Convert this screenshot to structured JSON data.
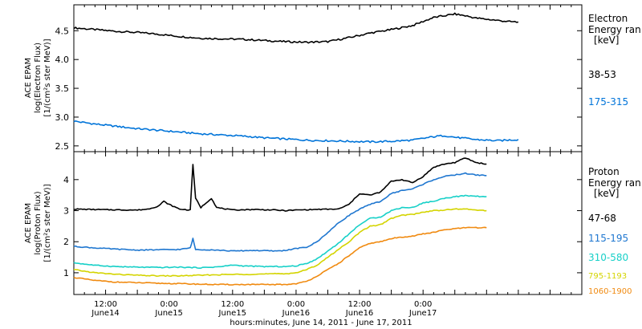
{
  "chart_data": [
    {
      "type": "line",
      "panel": "electron",
      "ylabel": [
        "ACE EPAM",
        "log(Electron Flux)",
        "[1/(cm²s ster MeV)]"
      ],
      "ylim": [
        2.4,
        4.95
      ],
      "xlim": [
        0,
        96
      ],
      "yticks": [
        {
          "value": 2.5,
          "label": "2.5"
        },
        {
          "value": 3.0,
          "label": "3.0"
        },
        {
          "value": 3.5,
          "label": "3.5"
        },
        {
          "value": 4.0,
          "label": "4.0"
        },
        {
          "value": 4.5,
          "label": "4.5"
        }
      ],
      "legend_title": [
        "Electron",
        "Energy ran",
        "[keV]"
      ],
      "series": [
        {
          "name": "38-53",
          "color": "#000000",
          "points": [
            [
              0,
              4.55
            ],
            [
              4,
              4.52
            ],
            [
              8,
              4.49
            ],
            [
              12,
              4.47
            ],
            [
              16,
              4.44
            ],
            [
              20,
              4.4
            ],
            [
              24,
              4.37
            ],
            [
              28,
              4.36
            ],
            [
              32,
              4.35
            ],
            [
              36,
              4.33
            ],
            [
              40,
              4.31
            ],
            [
              44,
              4.3
            ],
            [
              48,
              4.31
            ],
            [
              52,
              4.38
            ],
            [
              56,
              4.46
            ],
            [
              60,
              4.52
            ],
            [
              64,
              4.59
            ],
            [
              68,
              4.73
            ],
            [
              72,
              4.79
            ],
            [
              74,
              4.76
            ],
            [
              76,
              4.72
            ],
            [
              80,
              4.68
            ],
            [
              82,
              4.66
            ],
            [
              84,
              4.65
            ]
          ]
        },
        {
          "name": "175-315",
          "color": "#0074d9",
          "points": [
            [
              0,
              2.93
            ],
            [
              4,
              2.88
            ],
            [
              8,
              2.84
            ],
            [
              12,
              2.8
            ],
            [
              16,
              2.77
            ],
            [
              20,
              2.74
            ],
            [
              24,
              2.71
            ],
            [
              28,
              2.69
            ],
            [
              32,
              2.67
            ],
            [
              36,
              2.64
            ],
            [
              40,
              2.62
            ],
            [
              44,
              2.6
            ],
            [
              48,
              2.59
            ],
            [
              52,
              2.58
            ],
            [
              56,
              2.57
            ],
            [
              60,
              2.58
            ],
            [
              64,
              2.6
            ],
            [
              68,
              2.66
            ],
            [
              70,
              2.68
            ],
            [
              72,
              2.65
            ],
            [
              76,
              2.61
            ],
            [
              80,
              2.59
            ],
            [
              84,
              2.61
            ]
          ]
        }
      ]
    },
    {
      "type": "line",
      "panel": "proton",
      "ylabel": [
        "ACE EPAM",
        "log(Proton Flux)",
        "[1/(cm²s ster MeV)]"
      ],
      "ylim": [
        0.3,
        4.9
      ],
      "xlim": [
        0,
        96
      ],
      "xlabel": "hours:minutes, June 14, 2011 - June 17, 2011",
      "yticks": [
        {
          "value": 1,
          "label": "1"
        },
        {
          "value": 2,
          "label": "2"
        },
        {
          "value": 3,
          "label": "3"
        },
        {
          "value": 4,
          "label": "4"
        }
      ],
      "xticks": [
        {
          "value": 6,
          "label": "12:00",
          "sub": "June14"
        },
        {
          "value": 18,
          "label": "0:00",
          "sub": "June15"
        },
        {
          "value": 30,
          "label": "12:00",
          "sub": "June15"
        },
        {
          "value": 42,
          "label": "0:00",
          "sub": "June16"
        },
        {
          "value": 54,
          "label": "12:00",
          "sub": "June16"
        },
        {
          "value": 66,
          "label": "0:00",
          "sub": "June17"
        }
      ],
      "legend_title": [
        "Proton",
        "Energy ran",
        "[keV]"
      ],
      "series": [
        {
          "name": "47-68",
          "color": "#000000",
          "points": [
            [
              0,
              3.05
            ],
            [
              6,
              3.03
            ],
            [
              12,
              3.02
            ],
            [
              14,
              3.05
            ],
            [
              16,
              3.15
            ],
            [
              17,
              3.3
            ],
            [
              18,
              3.2
            ],
            [
              20,
              3.05
            ],
            [
              22,
              3.02
            ],
            [
              22.5,
              4.5
            ],
            [
              23,
              3.4
            ],
            [
              24,
              3.1
            ],
            [
              26,
              3.4
            ],
            [
              27,
              3.1
            ],
            [
              30,
              3.02
            ],
            [
              34,
              3.04
            ],
            [
              38,
              3.02
            ],
            [
              40,
              3.0
            ],
            [
              42,
              3.02
            ],
            [
              46,
              3.04
            ],
            [
              50,
              3.05
            ],
            [
              52,
              3.2
            ],
            [
              54,
              3.55
            ],
            [
              56,
              3.5
            ],
            [
              58,
              3.6
            ],
            [
              60,
              3.95
            ],
            [
              62,
              4.0
            ],
            [
              64,
              3.9
            ],
            [
              66,
              4.1
            ],
            [
              68,
              4.4
            ],
            [
              70,
              4.5
            ],
            [
              72,
              4.55
            ],
            [
              74,
              4.7
            ],
            [
              76,
              4.55
            ],
            [
              78,
              4.5
            ]
          ]
        },
        {
          "name": "115-195",
          "color": "#1f77d0",
          "points": [
            [
              0,
              1.85
            ],
            [
              4,
              1.8
            ],
            [
              8,
              1.76
            ],
            [
              12,
              1.73
            ],
            [
              16,
              1.74
            ],
            [
              20,
              1.75
            ],
            [
              22,
              1.8
            ],
            [
              22.5,
              2.1
            ],
            [
              23,
              1.75
            ],
            [
              26,
              1.74
            ],
            [
              30,
              1.7
            ],
            [
              34,
              1.72
            ],
            [
              38,
              1.7
            ],
            [
              40,
              1.72
            ],
            [
              42,
              1.78
            ],
            [
              44,
              1.82
            ],
            [
              46,
              2.0
            ],
            [
              48,
              2.3
            ],
            [
              50,
              2.6
            ],
            [
              52,
              2.85
            ],
            [
              54,
              3.05
            ],
            [
              56,
              3.2
            ],
            [
              58,
              3.3
            ],
            [
              60,
              3.55
            ],
            [
              62,
              3.65
            ],
            [
              64,
              3.7
            ],
            [
              66,
              3.85
            ],
            [
              68,
              4.0
            ],
            [
              70,
              4.1
            ],
            [
              72,
              4.15
            ],
            [
              74,
              4.2
            ],
            [
              76,
              4.15
            ],
            [
              78,
              4.13
            ]
          ]
        },
        {
          "name": "310-580",
          "color": "#17d0c8",
          "points": [
            [
              0,
              1.32
            ],
            [
              4,
              1.24
            ],
            [
              8,
              1.2
            ],
            [
              12,
              1.18
            ],
            [
              16,
              1.17
            ],
            [
              20,
              1.18
            ],
            [
              24,
              1.16
            ],
            [
              28,
              1.2
            ],
            [
              30,
              1.25
            ],
            [
              32,
              1.22
            ],
            [
              36,
              1.2
            ],
            [
              40,
              1.2
            ],
            [
              42,
              1.22
            ],
            [
              44,
              1.3
            ],
            [
              46,
              1.45
            ],
            [
              48,
              1.7
            ],
            [
              50,
              1.95
            ],
            [
              52,
              2.25
            ],
            [
              54,
              2.55
            ],
            [
              56,
              2.75
            ],
            [
              58,
              2.8
            ],
            [
              60,
              3.0
            ],
            [
              62,
              3.1
            ],
            [
              64,
              3.1
            ],
            [
              66,
              3.25
            ],
            [
              68,
              3.3
            ],
            [
              70,
              3.4
            ],
            [
              72,
              3.45
            ],
            [
              74,
              3.48
            ],
            [
              78,
              3.45
            ]
          ]
        },
        {
          "name": "795-1193",
          "color": "#d4d400",
          "points": [
            [
              0,
              1.1
            ],
            [
              4,
              1.0
            ],
            [
              8,
              0.95
            ],
            [
              12,
              0.92
            ],
            [
              16,
              0.9
            ],
            [
              20,
              0.9
            ],
            [
              24,
              0.92
            ],
            [
              28,
              0.94
            ],
            [
              32,
              0.95
            ],
            [
              36,
              0.96
            ],
            [
              40,
              0.97
            ],
            [
              42,
              1.0
            ],
            [
              44,
              1.1
            ],
            [
              46,
              1.25
            ],
            [
              48,
              1.5
            ],
            [
              50,
              1.75
            ],
            [
              52,
              2.0
            ],
            [
              54,
              2.3
            ],
            [
              56,
              2.5
            ],
            [
              58,
              2.55
            ],
            [
              60,
              2.75
            ],
            [
              62,
              2.85
            ],
            [
              64,
              2.88
            ],
            [
              66,
              2.95
            ],
            [
              68,
              3.0
            ],
            [
              70,
              3.02
            ],
            [
              72,
              3.05
            ],
            [
              74,
              3.05
            ],
            [
              78,
              3.0
            ]
          ]
        },
        {
          "name": "1060-1900",
          "color": "#f08a10",
          "points": [
            [
              0,
              0.85
            ],
            [
              4,
              0.75
            ],
            [
              8,
              0.7
            ],
            [
              12,
              0.68
            ],
            [
              16,
              0.66
            ],
            [
              20,
              0.65
            ],
            [
              24,
              0.63
            ],
            [
              28,
              0.62
            ],
            [
              32,
              0.62
            ],
            [
              36,
              0.62
            ],
            [
              40,
              0.62
            ],
            [
              42,
              0.65
            ],
            [
              44,
              0.72
            ],
            [
              46,
              0.9
            ],
            [
              48,
              1.1
            ],
            [
              50,
              1.3
            ],
            [
              52,
              1.55
            ],
            [
              54,
              1.8
            ],
            [
              56,
              1.95
            ],
            [
              58,
              2.0
            ],
            [
              60,
              2.1
            ],
            [
              62,
              2.15
            ],
            [
              64,
              2.18
            ],
            [
              66,
              2.25
            ],
            [
              68,
              2.3
            ],
            [
              70,
              2.38
            ],
            [
              72,
              2.42
            ],
            [
              74,
              2.45
            ],
            [
              78,
              2.45
            ]
          ]
        }
      ]
    }
  ]
}
